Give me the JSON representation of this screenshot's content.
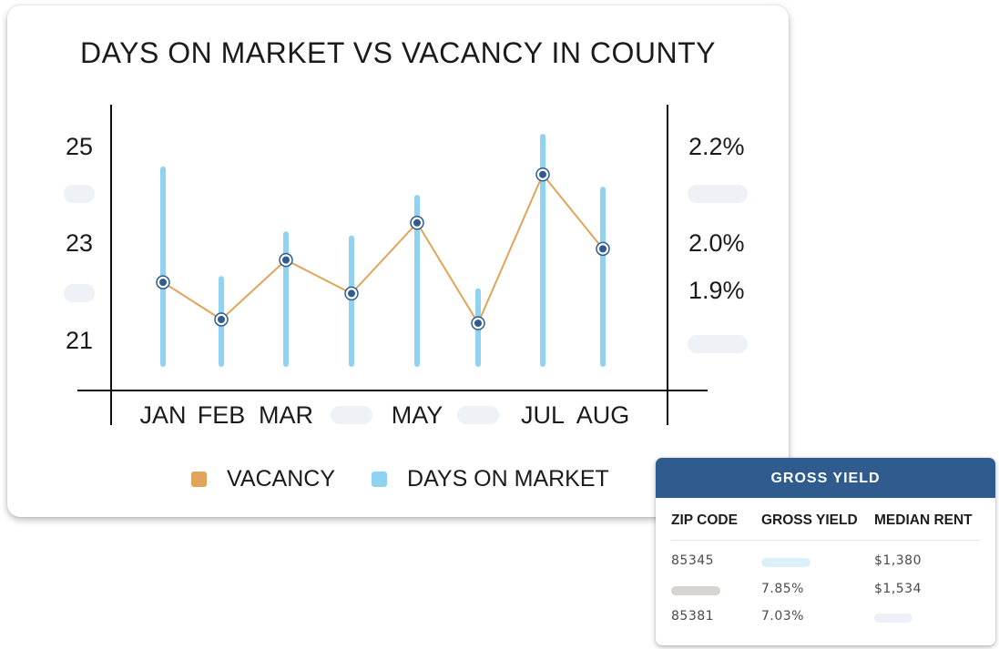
{
  "chart_data": {
    "type": "bar+line",
    "title": "DAYS ON MARKET VS VACANCY IN COUNTY",
    "categories": [
      "JAN",
      "FEB",
      "MAR",
      "",
      "MAY",
      "",
      "JUL",
      "AUG"
    ],
    "left_ticks": [
      "25",
      "",
      "23",
      "",
      "21"
    ],
    "right_ticks": [
      "2.2%",
      "",
      "2.0%",
      "1.9%",
      ""
    ],
    "series": [
      {
        "name": "VACANCY",
        "type": "line",
        "color": "#e0a55a",
        "values": [
          1.91,
          1.81,
          1.97,
          1.88,
          2.07,
          1.8,
          2.2,
          2.0
        ]
      },
      {
        "name": "DAYS ON MARKET",
        "type": "bar",
        "color": "#8fd3f0",
        "values": [
          24.3,
          21.6,
          22.7,
          22.6,
          23.6,
          21.3,
          25.1,
          23.8
        ]
      }
    ],
    "ylim_left": [
      19.5,
      26
    ],
    "ylim_right": [
      1.69,
      2.4
    ],
    "legend": "bottom"
  },
  "table": {
    "title": "GROSS YIELD",
    "columns": [
      "ZIP CODE",
      "GROSS YIELD",
      "MEDIAN RENT"
    ],
    "rows": [
      [
        "85345",
        "",
        "$1,380"
      ],
      [
        "",
        "7.85%",
        "$1,534"
      ],
      [
        "85381",
        "7.03%",
        ""
      ]
    ]
  },
  "colors": {
    "line": "#e0a55a",
    "bar": "#8fd3f0",
    "marker_fill": "#2f5b8e",
    "header": "#2f5b8e"
  }
}
